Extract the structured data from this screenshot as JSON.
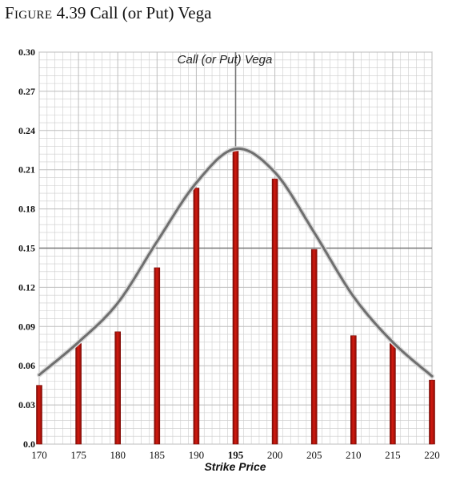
{
  "figure": {
    "caption_prefix": "Figure",
    "caption_number": "4.39",
    "caption_title": "Call (or Put) Vega"
  },
  "chart_data": {
    "type": "bar",
    "title": "Call (or Put) Vega",
    "xlabel": "Strike Price",
    "ylabel": "",
    "categories": [
      170,
      175,
      180,
      185,
      190,
      195,
      200,
      205,
      210,
      215,
      220
    ],
    "values": [
      0.045,
      0.077,
      0.086,
      0.135,
      0.196,
      0.226,
      0.203,
      0.149,
      0.083,
      0.077,
      0.049
    ],
    "curve": {
      "x": [
        170,
        175,
        180,
        185,
        190,
        195,
        200,
        205,
        210,
        215,
        220
      ],
      "y": [
        0.053,
        0.078,
        0.108,
        0.155,
        0.2,
        0.226,
        0.208,
        0.162,
        0.113,
        0.078,
        0.052
      ]
    },
    "xlim": [
      170,
      220
    ],
    "ylim": [
      0,
      0.3
    ],
    "y_ticks": [
      "0.0",
      "0.03",
      "0.06",
      "0.09",
      "0.12",
      "0.15",
      "0.18",
      "0.21",
      "0.24",
      "0.27",
      "0.30"
    ],
    "x_ticks": [
      "170",
      "175",
      "180",
      "185",
      "190",
      "195",
      "200",
      "205",
      "210",
      "215",
      "220"
    ],
    "bold_x_tick": "195",
    "reference_lines": {
      "x": 195,
      "y": 0.15
    },
    "grid": true,
    "colors": {
      "bar": "#c0150c",
      "bar_dark": "#7a0a05",
      "curve": "#6f6f6f",
      "grid": "#cccccc",
      "reference": "#777777"
    }
  }
}
